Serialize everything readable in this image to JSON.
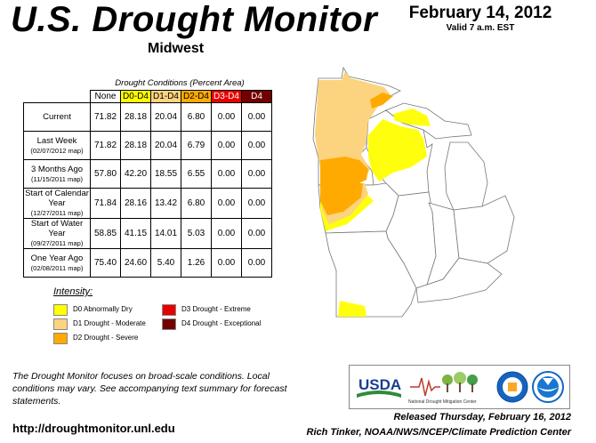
{
  "header": {
    "title": "U.S. Drought Monitor",
    "region": "Midwest",
    "date": "February 14, 2012",
    "valid": "Valid 7 a.m. EST"
  },
  "table": {
    "caption": "Drought Conditions (Percent Area)",
    "columns": [
      "None",
      "D0-D4",
      "D1-D4",
      "D2-D4",
      "D3-D4",
      "D4"
    ],
    "column_colors": [
      "#ffffff",
      "#ffff00",
      "#fcd37f",
      "#ffaa00",
      "#e60000",
      "#730000"
    ],
    "rows": [
      {
        "label": "Current",
        "sub": "",
        "values": [
          "71.82",
          "28.18",
          "20.04",
          "6.80",
          "0.00",
          "0.00"
        ]
      },
      {
        "label": "Last Week",
        "sub": "(02/07/2012 map)",
        "values": [
          "71.82",
          "28.18",
          "20.04",
          "6.79",
          "0.00",
          "0.00"
        ]
      },
      {
        "label": "3 Months Ago",
        "sub": "(11/15/2011 map)",
        "values": [
          "57.80",
          "42.20",
          "18.55",
          "6.55",
          "0.00",
          "0.00"
        ]
      },
      {
        "label": "Start of Calendar Year",
        "sub": "(12/27/2011 map)",
        "values": [
          "71.84",
          "28.16",
          "13.42",
          "6.80",
          "0.00",
          "0.00"
        ]
      },
      {
        "label": "Start of Water Year",
        "sub": "(09/27/2011 map)",
        "values": [
          "58.85",
          "41.15",
          "14.01",
          "5.03",
          "0.00",
          "0.00"
        ]
      },
      {
        "label": "One Year Ago",
        "sub": "(02/08/2011 map)",
        "values": [
          "75.40",
          "24.60",
          "5.40",
          "1.26",
          "0.00",
          "0.00"
        ]
      }
    ]
  },
  "legend": {
    "title": "Intensity:",
    "items": [
      {
        "label": "D0 Abnormally Dry",
        "color": "#ffff00"
      },
      {
        "label": "D1 Drought - Moderate",
        "color": "#fcd37f"
      },
      {
        "label": "D2 Drought - Severe",
        "color": "#ffaa00"
      },
      {
        "label": "D3 Drought - Extreme",
        "color": "#e60000"
      },
      {
        "label": "D4 Drought - Exceptional",
        "color": "#730000"
      }
    ]
  },
  "footnote": "The Drought Monitor focuses on broad-scale conditions. Local conditions may vary. See accompanying text summary for forecast statements.",
  "url": "http://droughtmonitor.unl.edu",
  "released": "Released Thursday, February 16, 2012",
  "author": "Rich Tinker, NOAA/NWS/NCEP/Climate Prediction Center",
  "logos": {
    "usda": "USDA",
    "ndmc": "National Drought Mitigation Center"
  }
}
